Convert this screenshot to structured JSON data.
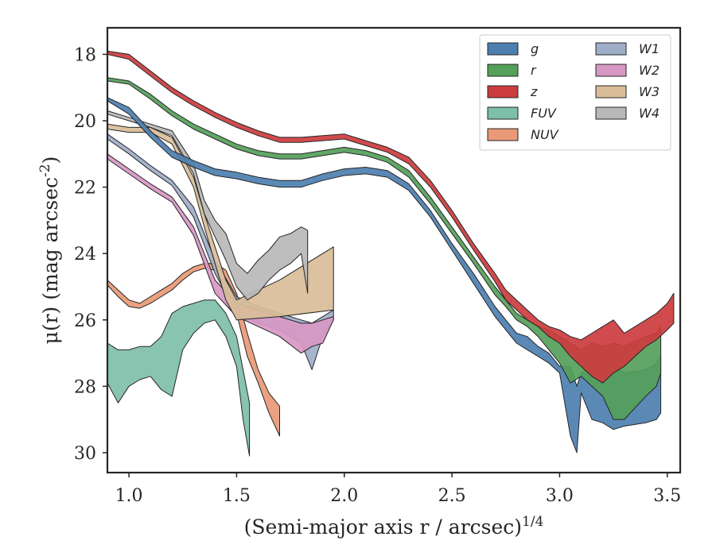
{
  "chart_data": {
    "type": "area",
    "xlabel": "(Semi-major axis r / arcsec)^1/4",
    "ylabel": "μ(r) (mag arcsec^-2)",
    "xlim": [
      0.9,
      3.56
    ],
    "ylim": [
      30.6,
      17.2
    ],
    "y_inverted": true,
    "x_ticks": [
      "1.0",
      "1.5",
      "2.0",
      "2.5",
      "3.0",
      "3.5"
    ],
    "y_ticks": [
      "18",
      "20",
      "22",
      "24",
      "26",
      "28",
      "30"
    ],
    "grid": false,
    "legend_position": "top-right",
    "legend_columns": 2,
    "series": [
      {
        "name": "g",
        "color": "#4c7fb0",
        "x": [
          0.9,
          1.0,
          1.1,
          1.2,
          1.3,
          1.4,
          1.5,
          1.6,
          1.7,
          1.8,
          1.9,
          2.0,
          2.1,
          2.2,
          2.3,
          2.4,
          2.5,
          2.6,
          2.7,
          2.75,
          2.8,
          2.85,
          2.9,
          2.95,
          3.0,
          3.05,
          3.08,
          3.1,
          3.15,
          3.2,
          3.25,
          3.3,
          3.4,
          3.45,
          3.47
        ],
        "lower": [
          19.3,
          19.6,
          20.3,
          20.9,
          21.2,
          21.45,
          21.55,
          21.7,
          21.8,
          21.8,
          21.6,
          21.45,
          21.4,
          21.5,
          21.9,
          22.7,
          23.7,
          24.6,
          25.6,
          26.0,
          26.4,
          26.5,
          26.8,
          27.0,
          27.4,
          27.4,
          28.0,
          27.6,
          27.4,
          27.0,
          27.3,
          27.6,
          27.5,
          27.3,
          27.1
        ],
        "upper": [
          19.4,
          19.8,
          20.5,
          21.1,
          21.4,
          21.65,
          21.75,
          21.9,
          22.0,
          22.0,
          21.8,
          21.65,
          21.6,
          21.7,
          22.1,
          22.9,
          23.9,
          24.9,
          25.9,
          26.3,
          26.7,
          26.9,
          27.1,
          27.3,
          27.6,
          29.5,
          30.0,
          28.2,
          29.0,
          29.1,
          29.3,
          29.2,
          29.1,
          29.0,
          28.8
        ]
      },
      {
        "name": "r",
        "color": "#55a05a",
        "x": [
          0.9,
          1.0,
          1.1,
          1.2,
          1.3,
          1.4,
          1.5,
          1.6,
          1.7,
          1.8,
          1.9,
          2.0,
          2.1,
          2.2,
          2.3,
          2.4,
          2.5,
          2.6,
          2.7,
          2.75,
          2.8,
          2.85,
          2.9,
          2.95,
          3.0,
          3.05,
          3.1,
          3.15,
          3.2,
          3.25,
          3.3,
          3.4,
          3.45,
          3.47
        ],
        "lower": [
          18.7,
          18.8,
          19.2,
          19.7,
          20.1,
          20.4,
          20.7,
          20.9,
          21.0,
          21.0,
          20.9,
          20.8,
          20.9,
          21.1,
          21.5,
          22.3,
          23.2,
          24.1,
          25.0,
          25.4,
          25.8,
          26.0,
          26.2,
          26.3,
          26.5,
          26.7,
          26.9,
          26.7,
          26.8,
          26.7,
          26.8,
          26.5,
          26.4,
          26.2
        ],
        "upper": [
          18.8,
          18.9,
          19.35,
          19.85,
          20.25,
          20.55,
          20.85,
          21.05,
          21.15,
          21.15,
          21.05,
          20.95,
          21.05,
          21.25,
          21.7,
          22.5,
          23.4,
          24.3,
          25.25,
          25.6,
          26.0,
          26.2,
          26.5,
          26.9,
          27.3,
          27.9,
          27.7,
          28.0,
          28.3,
          29.0,
          29.0,
          28.3,
          28.0,
          27.6
        ]
      },
      {
        "name": "z",
        "color": "#cc3c3e",
        "x": [
          0.9,
          1.0,
          1.1,
          1.2,
          1.3,
          1.4,
          1.5,
          1.6,
          1.7,
          1.8,
          1.9,
          2.0,
          2.1,
          2.2,
          2.3,
          2.4,
          2.5,
          2.6,
          2.7,
          2.75,
          2.8,
          2.85,
          2.9,
          2.95,
          3.0,
          3.05,
          3.1,
          3.15,
          3.2,
          3.25,
          3.3,
          3.4,
          3.45,
          3.5,
          3.53
        ],
        "lower": [
          17.9,
          18.0,
          18.5,
          19.0,
          19.4,
          19.75,
          20.05,
          20.3,
          20.5,
          20.5,
          20.45,
          20.4,
          20.6,
          20.8,
          21.1,
          21.8,
          22.7,
          23.7,
          24.6,
          25.1,
          25.4,
          25.7,
          26.0,
          26.2,
          26.3,
          26.5,
          26.6,
          26.4,
          26.2,
          26.0,
          26.4,
          26.0,
          25.8,
          25.5,
          25.2
        ],
        "upper": [
          18.0,
          18.15,
          18.65,
          19.15,
          19.55,
          19.9,
          20.2,
          20.45,
          20.65,
          20.65,
          20.6,
          20.55,
          20.75,
          20.95,
          21.3,
          22.0,
          22.9,
          23.9,
          24.85,
          25.4,
          25.7,
          26.0,
          26.2,
          26.5,
          26.7,
          27.1,
          27.4,
          27.7,
          27.9,
          27.6,
          27.4,
          26.8,
          26.6,
          26.3,
          26.1
        ]
      },
      {
        "name": "FUV",
        "color": "#7ebfa8",
        "x": [
          0.9,
          0.95,
          1.0,
          1.05,
          1.1,
          1.15,
          1.2,
          1.25,
          1.3,
          1.35,
          1.4,
          1.45,
          1.5,
          1.53,
          1.56
        ],
        "lower": [
          26.7,
          26.9,
          26.9,
          26.8,
          26.8,
          26.5,
          25.8,
          25.6,
          25.5,
          25.4,
          25.4,
          25.8,
          26.5,
          27.5,
          28.5
        ],
        "upper": [
          27.9,
          28.5,
          28.0,
          27.8,
          27.7,
          28.1,
          28.3,
          26.9,
          26.4,
          26.1,
          26.0,
          26.5,
          27.4,
          29.0,
          30.1
        ]
      },
      {
        "name": "NUV",
        "color": "#e99976",
        "x": [
          0.9,
          0.95,
          1.0,
          1.05,
          1.1,
          1.15,
          1.2,
          1.25,
          1.3,
          1.35,
          1.4,
          1.45,
          1.5,
          1.55,
          1.6,
          1.65,
          1.7
        ],
        "lower": [
          24.8,
          25.1,
          25.4,
          25.5,
          25.3,
          25.1,
          24.9,
          24.6,
          24.4,
          24.3,
          24.3,
          24.5,
          25.2,
          26.4,
          27.5,
          28.2,
          28.6
        ],
        "upper": [
          24.95,
          25.3,
          25.6,
          25.65,
          25.5,
          25.3,
          25.1,
          24.8,
          24.55,
          24.45,
          24.5,
          24.9,
          25.8,
          27.1,
          27.9,
          28.8,
          29.5
        ]
      },
      {
        "name": "W1",
        "color": "#9eaec8",
        "x": [
          0.9,
          1.0,
          1.1,
          1.2,
          1.3,
          1.4,
          1.5,
          1.6,
          1.7,
          1.8,
          1.85,
          1.9,
          1.95
        ],
        "lower": [
          20.4,
          20.85,
          21.35,
          21.8,
          22.6,
          24.2,
          25.3,
          25.6,
          25.8,
          26.0,
          26.1,
          25.9,
          25.7
        ],
        "upper": [
          20.55,
          21.0,
          21.5,
          21.95,
          22.9,
          24.6,
          25.8,
          26.1,
          26.3,
          26.7,
          27.5,
          26.5,
          26.0
        ]
      },
      {
        "name": "W2",
        "color": "#d898c6",
        "x": [
          0.9,
          1.0,
          1.1,
          1.2,
          1.3,
          1.4,
          1.5,
          1.6,
          1.7,
          1.8,
          1.85,
          1.9,
          1.95
        ],
        "lower": [
          21.0,
          21.45,
          21.9,
          22.3,
          23.2,
          24.8,
          25.5,
          25.7,
          25.9,
          26.1,
          26.1,
          26.0,
          25.9
        ],
        "upper": [
          21.15,
          21.6,
          22.05,
          22.45,
          23.45,
          25.2,
          25.9,
          26.2,
          26.5,
          27.0,
          26.8,
          26.7,
          26.0
        ]
      },
      {
        "name": "W3",
        "color": "#d9bd98",
        "x": [
          0.9,
          1.0,
          1.1,
          1.2,
          1.3,
          1.35,
          1.4,
          1.45,
          1.5,
          1.7,
          1.95
        ],
        "lower": [
          20.1,
          20.2,
          20.2,
          20.5,
          21.7,
          22.8,
          23.8,
          24.8,
          25.4,
          24.8,
          23.8
        ],
        "upper": [
          20.25,
          20.35,
          20.35,
          20.7,
          22.0,
          23.2,
          24.3,
          25.4,
          26.0,
          25.9,
          25.7
        ]
      },
      {
        "name": "W4",
        "color": "#b8b8b8",
        "x": [
          0.9,
          1.0,
          1.1,
          1.2,
          1.3,
          1.35,
          1.4,
          1.45,
          1.5,
          1.55,
          1.6,
          1.65,
          1.7,
          1.75,
          1.8,
          1.83
        ],
        "lower": [
          19.7,
          19.9,
          20.1,
          20.3,
          21.3,
          22.4,
          23.0,
          23.4,
          24.3,
          24.6,
          24.2,
          23.9,
          23.5,
          23.4,
          23.2,
          23.3
        ],
        "upper": [
          19.8,
          20.0,
          20.2,
          20.45,
          21.6,
          22.8,
          23.5,
          24.2,
          25.0,
          25.4,
          25.2,
          24.8,
          24.5,
          24.3,
          24.0,
          25.2
        ]
      }
    ]
  }
}
